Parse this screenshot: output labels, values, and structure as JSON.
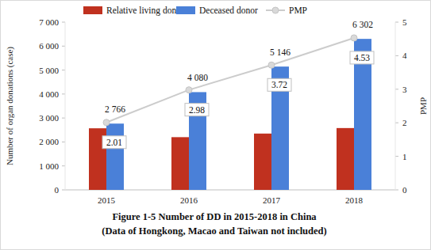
{
  "chart_data": {
    "type": "bar",
    "title": "Figure 1-5 Number of DD in 2015-2018 in China",
    "subtitle": "(Data of Hongkong, Macao and Taiwan not included)",
    "y_label": "Number of organ donations (case)",
    "y2_label": "PMP",
    "categories": [
      "2015",
      "2016",
      "2017",
      "2018"
    ],
    "series": [
      {
        "name": "Relative living donor",
        "type": "bar",
        "color": "#c0311f",
        "data_labels": false,
        "values": [
          2570,
          2200,
          2350,
          2580
        ]
      },
      {
        "name": "Deceased donor",
        "type": "bar",
        "color": "#4a80d8",
        "data_labels": true,
        "values": [
          2766,
          4080,
          5146,
          6302
        ],
        "value_labels": [
          "2 766",
          "4 080",
          "5 146",
          "6 302"
        ]
      },
      {
        "name": "PMP",
        "type": "line",
        "axis": "y2",
        "color": "#cccccc",
        "marker": "circle",
        "line_style": "solid",
        "data_labels": true,
        "values": [
          2.01,
          2.98,
          3.72,
          4.53
        ]
      }
    ],
    "ylim": [
      0,
      7000
    ],
    "yticks": [
      0,
      {
        "value": 1000,
        "label": "1 000"
      },
      {
        "value": 2000,
        "label": "2 000"
      },
      {
        "value": 3000,
        "label": "3 000"
      },
      {
        "value": 4000,
        "label": "4 000"
      },
      {
        "value": 5000,
        "label": "5 000"
      },
      {
        "value": 6000,
        "label": "6 000"
      },
      {
        "value": 7000,
        "label": "7 000"
      }
    ],
    "y2lim": [
      0,
      5
    ],
    "y2ticks": [
      0,
      1,
      2,
      3,
      4,
      5
    ],
    "grid": false,
    "legend": "top"
  }
}
